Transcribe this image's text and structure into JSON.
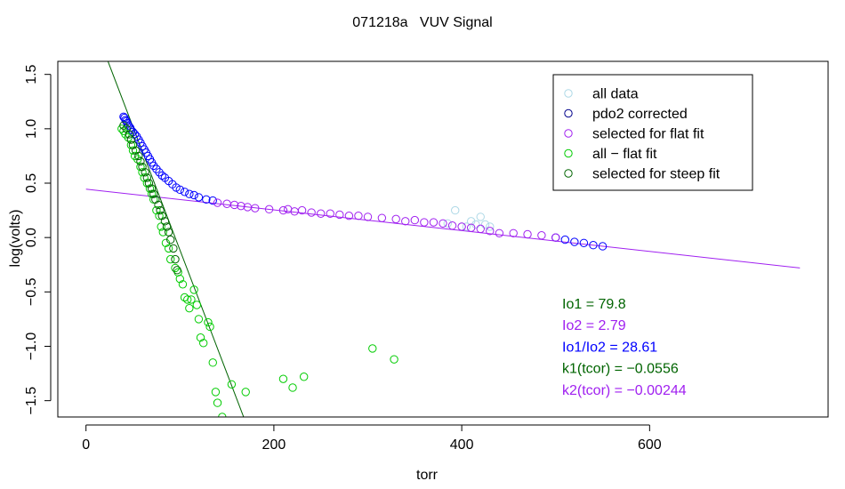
{
  "chart_data": {
    "type": "scatter",
    "title": "071218a   VUV Signal",
    "xlabel": "torr",
    "ylabel": "log(volts)",
    "xlim": [
      -30,
      790
    ],
    "ylim": [
      -1.65,
      1.62
    ],
    "x_ticks": [
      0,
      200,
      400,
      600
    ],
    "x_tick_labels": [
      "0",
      "200",
      "400",
      "600"
    ],
    "y_ticks": [
      -1.5,
      -1.0,
      -0.5,
      0.0,
      0.5,
      1.0,
      1.5
    ],
    "y_tick_labels": [
      "−1.5",
      "−1.0",
      "−0.5",
      "0.0",
      "0.5",
      "1.0",
      "1.5"
    ],
    "legend": {
      "position": "top-right",
      "entries": [
        {
          "label": "all data",
          "color": "#add8e6"
        },
        {
          "label": "pdo2 corrected",
          "color": "#00008b"
        },
        {
          "label": "selected for flat fit",
          "color": "#a020f0"
        },
        {
          "label": "all − flat fit",
          "color": "#00cc00"
        },
        {
          "label": "selected for steep fit",
          "color": "#006400"
        }
      ]
    },
    "series": [
      {
        "name": "all data",
        "color": "#add8e6",
        "points": [
          [
            385,
            0.13
          ],
          [
            393,
            0.25
          ],
          [
            400,
            0.1
          ],
          [
            405,
            0.1
          ],
          [
            410,
            0.15
          ],
          [
            415,
            0.12
          ],
          [
            420,
            0.19
          ],
          [
            425,
            0.12
          ],
          [
            430,
            0.1
          ]
        ]
      },
      {
        "name": "pdo2 corrected",
        "color": "#0000ff",
        "points": [
          [
            40,
            1.11
          ],
          [
            41,
            1.1
          ],
          [
            42,
            1.08
          ],
          [
            43,
            1.07
          ],
          [
            44,
            1.05
          ],
          [
            45,
            1.03
          ],
          [
            47,
            1.01
          ],
          [
            48,
            0.99
          ],
          [
            50,
            0.97
          ],
          [
            52,
            0.95
          ],
          [
            54,
            0.93
          ],
          [
            56,
            0.9
          ],
          [
            58,
            0.87
          ],
          [
            60,
            0.84
          ],
          [
            62,
            0.81
          ],
          [
            64,
            0.78
          ],
          [
            66,
            0.75
          ],
          [
            68,
            0.72
          ],
          [
            70,
            0.69
          ],
          [
            72,
            0.66
          ],
          [
            75,
            0.63
          ],
          [
            78,
            0.6
          ],
          [
            81,
            0.57
          ],
          [
            84,
            0.55
          ],
          [
            88,
            0.52
          ],
          [
            92,
            0.49
          ],
          [
            96,
            0.46
          ],
          [
            100,
            0.44
          ],
          [
            105,
            0.42
          ],
          [
            110,
            0.4
          ],
          [
            115,
            0.39
          ],
          [
            120,
            0.37
          ],
          [
            128,
            0.35
          ],
          [
            135,
            0.34
          ],
          [
            500,
            0.0
          ],
          [
            510,
            -0.02
          ],
          [
            520,
            -0.04
          ],
          [
            530,
            -0.05
          ],
          [
            540,
            -0.07
          ],
          [
            550,
            -0.08
          ]
        ]
      },
      {
        "name": "selected for flat fit",
        "color": "#a020f0",
        "points": [
          [
            140,
            0.32
          ],
          [
            150,
            0.31
          ],
          [
            158,
            0.3
          ],
          [
            165,
            0.29
          ],
          [
            172,
            0.28
          ],
          [
            180,
            0.27
          ],
          [
            195,
            0.26
          ],
          [
            210,
            0.25
          ],
          [
            215,
            0.26
          ],
          [
            222,
            0.24
          ],
          [
            230,
            0.25
          ],
          [
            240,
            0.23
          ],
          [
            250,
            0.22
          ],
          [
            260,
            0.22
          ],
          [
            270,
            0.21
          ],
          [
            280,
            0.2
          ],
          [
            290,
            0.2
          ],
          [
            300,
            0.19
          ],
          [
            315,
            0.18
          ],
          [
            330,
            0.17
          ],
          [
            340,
            0.15
          ],
          [
            350,
            0.16
          ],
          [
            360,
            0.14
          ],
          [
            370,
            0.14
          ],
          [
            380,
            0.13
          ],
          [
            390,
            0.11
          ],
          [
            400,
            0.1
          ],
          [
            410,
            0.09
          ],
          [
            420,
            0.08
          ],
          [
            430,
            0.06
          ],
          [
            440,
            0.04
          ],
          [
            455,
            0.04
          ],
          [
            470,
            0.03
          ],
          [
            485,
            0.02
          ],
          [
            500,
            0.0
          ]
        ]
      },
      {
        "name": "all − flat fit",
        "color": "#00cc00",
        "points": [
          [
            38,
            1.0
          ],
          [
            40,
            0.98
          ],
          [
            42,
            0.95
          ],
          [
            45,
            0.92
          ],
          [
            48,
            0.85
          ],
          [
            50,
            0.8
          ],
          [
            52,
            0.75
          ],
          [
            55,
            0.72
          ],
          [
            58,
            0.65
          ],
          [
            60,
            0.6
          ],
          [
            62,
            0.55
          ],
          [
            65,
            0.5
          ],
          [
            68,
            0.45
          ],
          [
            70,
            0.4
          ],
          [
            72,
            0.35
          ],
          [
            75,
            0.25
          ],
          [
            78,
            0.2
          ],
          [
            80,
            0.1
          ],
          [
            82,
            0.05
          ],
          [
            85,
            -0.05
          ],
          [
            88,
            -0.1
          ],
          [
            90,
            -0.2
          ],
          [
            95,
            -0.28
          ],
          [
            98,
            -0.32
          ],
          [
            100,
            -0.38
          ],
          [
            103,
            -0.43
          ],
          [
            105,
            -0.55
          ],
          [
            108,
            -0.57
          ],
          [
            110,
            -0.65
          ],
          [
            112,
            -0.57
          ],
          [
            115,
            -0.48
          ],
          [
            118,
            -0.62
          ],
          [
            120,
            -0.75
          ],
          [
            122,
            -0.92
          ],
          [
            125,
            -0.97
          ],
          [
            130,
            -0.78
          ],
          [
            132,
            -0.82
          ],
          [
            135,
            -1.15
          ],
          [
            138,
            -1.42
          ],
          [
            140,
            -1.52
          ],
          [
            145,
            -1.65
          ],
          [
            155,
            -1.35
          ],
          [
            170,
            -1.42
          ],
          [
            210,
            -1.3
          ],
          [
            220,
            -1.38
          ],
          [
            232,
            -1.28
          ],
          [
            305,
            -1.02
          ],
          [
            328,
            -1.12
          ]
        ]
      },
      {
        "name": "selected for steep fit",
        "color": "#006400",
        "points": [
          [
            40,
            1.03
          ],
          [
            43,
            1.0
          ],
          [
            46,
            0.95
          ],
          [
            48,
            0.9
          ],
          [
            50,
            0.85
          ],
          [
            53,
            0.8
          ],
          [
            56,
            0.75
          ],
          [
            58,
            0.7
          ],
          [
            60,
            0.65
          ],
          [
            63,
            0.6
          ],
          [
            65,
            0.55
          ],
          [
            67,
            0.5
          ],
          [
            70,
            0.45
          ],
          [
            72,
            0.4
          ],
          [
            74,
            0.35
          ],
          [
            77,
            0.3
          ],
          [
            79,
            0.25
          ],
          [
            81,
            0.2
          ],
          [
            84,
            0.15
          ],
          [
            86,
            0.1
          ],
          [
            88,
            0.05
          ],
          [
            90,
            -0.02
          ],
          [
            93,
            -0.1
          ],
          [
            95,
            -0.2
          ],
          [
            97,
            -0.3
          ]
        ]
      }
    ],
    "fit_lines": [
      {
        "name": "flat fit",
        "color": "#a020f0",
        "x": [
          0,
          760
        ],
        "y": [
          0.445,
          -0.28
        ]
      },
      {
        "name": "steep fit",
        "color": "#006400",
        "x": [
          0,
          170
        ],
        "y": [
          2.15,
          -1.7
        ]
      }
    ],
    "annotations": [
      {
        "text": "Io1 =  79.8",
        "color": "#006400"
      },
      {
        "text": "Io2 =  2.79",
        "color": "#a020f0"
      },
      {
        "text": "Io1/Io2 =  28.61",
        "color": "#0000ff"
      },
      {
        "text": "k1(tcor) =  −0.0556",
        "color": "#006400"
      },
      {
        "text": "k2(tcor) =  −0.00244",
        "color": "#a020f0"
      }
    ]
  }
}
